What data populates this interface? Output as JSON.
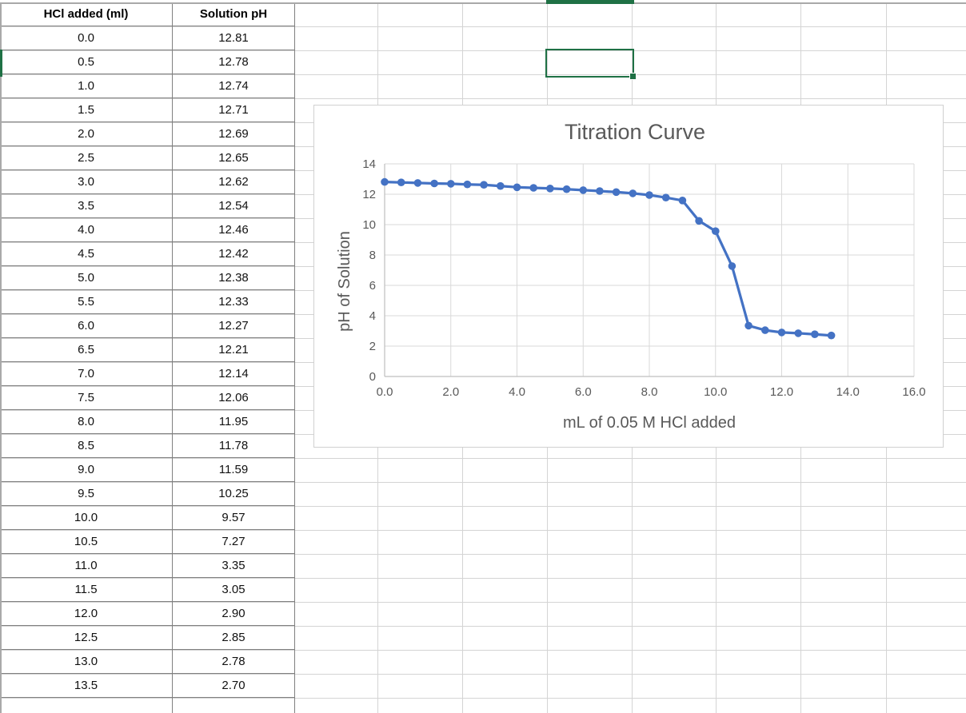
{
  "sheet": {
    "table": {
      "headers": [
        "HCl added (ml)",
        "Solution pH"
      ],
      "rows": [
        [
          "0.0",
          "12.81"
        ],
        [
          "0.5",
          "12.78"
        ],
        [
          "1.0",
          "12.74"
        ],
        [
          "1.5",
          "12.71"
        ],
        [
          "2.0",
          "12.69"
        ],
        [
          "2.5",
          "12.65"
        ],
        [
          "3.0",
          "12.62"
        ],
        [
          "3.5",
          "12.54"
        ],
        [
          "4.0",
          "12.46"
        ],
        [
          "4.5",
          "12.42"
        ],
        [
          "5.0",
          "12.38"
        ],
        [
          "5.5",
          "12.33"
        ],
        [
          "6.0",
          "12.27"
        ],
        [
          "6.5",
          "12.21"
        ],
        [
          "7.0",
          "12.14"
        ],
        [
          "7.5",
          "12.06"
        ],
        [
          "8.0",
          "11.95"
        ],
        [
          "8.5",
          "11.78"
        ],
        [
          "9.0",
          "11.59"
        ],
        [
          "9.5",
          "10.25"
        ],
        [
          "10.0",
          "9.57"
        ],
        [
          "10.5",
          "7.27"
        ],
        [
          "11.0",
          "3.35"
        ],
        [
          "11.5",
          "3.05"
        ],
        [
          "12.0",
          "2.90"
        ],
        [
          "12.5",
          "2.85"
        ],
        [
          "13.0",
          "2.78"
        ],
        [
          "13.5",
          "2.70"
        ]
      ]
    }
  },
  "chart_data": {
    "type": "line",
    "title": "Titration Curve",
    "xlabel": "mL of 0.05 M HCl added",
    "ylabel": "pH of Solution",
    "x": [
      0,
      0.5,
      1,
      1.5,
      2,
      2.5,
      3,
      3.5,
      4,
      4.5,
      5,
      5.5,
      6,
      6.5,
      7,
      7.5,
      8,
      8.5,
      9,
      9.5,
      10,
      10.5,
      11,
      11.5,
      12,
      12.5,
      13,
      13.5
    ],
    "y": [
      12.81,
      12.78,
      12.74,
      12.71,
      12.69,
      12.65,
      12.62,
      12.54,
      12.46,
      12.42,
      12.38,
      12.33,
      12.27,
      12.21,
      12.14,
      12.06,
      11.95,
      11.78,
      11.59,
      10.25,
      9.57,
      7.27,
      3.35,
      3.05,
      2.9,
      2.85,
      2.78,
      2.7
    ],
    "xlim": [
      0,
      16
    ],
    "ylim": [
      0,
      14
    ],
    "x_ticks": [
      "0.0",
      "2.0",
      "4.0",
      "6.0",
      "8.0",
      "10.0",
      "12.0",
      "14.0",
      "16.0"
    ],
    "y_ticks": [
      "0",
      "2",
      "4",
      "6",
      "8",
      "10",
      "12",
      "14"
    ],
    "grid": true,
    "legend": false,
    "marker": "circle"
  },
  "colors": {
    "selection_green": "#1f7145",
    "series_blue": "#4472C4",
    "chart_text_gray": "#595959",
    "chart_gridline": "#d9d9d9",
    "chart_axis_line": "#bfbfbf",
    "sheet_gridline": "#d4d4d4",
    "table_border": "#808080"
  }
}
